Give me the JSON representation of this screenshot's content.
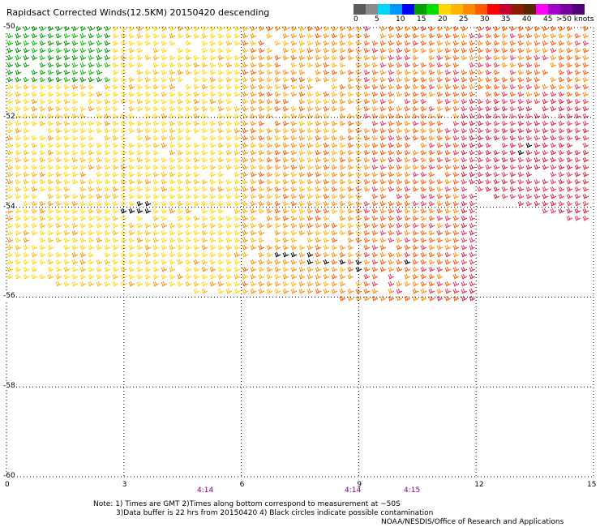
{
  "title": "Rapidsact Corrected Winds(12.5KM) 20150420 descending",
  "legend": {
    "colors": [
      "#5a5a5a",
      "#8c8c8c",
      "#00d7ff",
      "#0096ff",
      "#0000ff",
      "#00a000",
      "#00e000",
      "#ffd700",
      "#ffb400",
      "#ff8c00",
      "#ff5a00",
      "#ff0000",
      "#c80032",
      "#8c1e00",
      "#5a2800",
      "#ff00ff",
      "#a000c8",
      "#7800a0",
      "#500078"
    ],
    "labels": [
      "0",
      "5",
      "10",
      "15",
      "20",
      "25",
      "30",
      "35",
      "40",
      "45"
    ],
    "last_label": ">50 knots"
  },
  "axes": {
    "x_ticks": [
      "0",
      "3",
      "6",
      "9",
      "12",
      "15"
    ],
    "y_ticks": [
      "-50",
      "-52",
      "-54",
      "-56",
      "-58",
      "-60"
    ]
  },
  "time_labels": [
    "4:14",
    "4:14",
    "4:15"
  ],
  "notes": {
    "line1": "Note: 1) Times are GMT 2)Times along bottom correspond to measurement at ~50S",
    "line2": "3)Data buffer is 22 hrs from 20150420 4) Black circles indicate possible contamination",
    "credit": "NOAA/NESDIS/Office of Research and Applications"
  }
}
